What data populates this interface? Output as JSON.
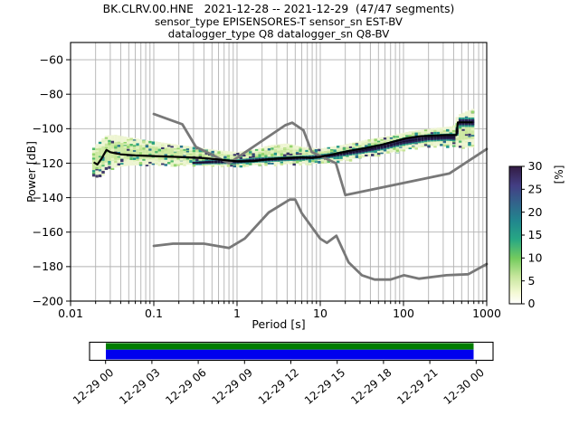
{
  "chart_data": {
    "type": "heatmap",
    "title": "BK.CLRV.00.HNE   2021-12-28 -- 2021-12-29  (47/47 segments)",
    "subtitle_sensor": "sensor_type EPISENSORES-T sensor_sn EST-BV",
    "subtitle_datalogger": "datalogger_type Q8 datalogger_sn Q8-BV",
    "x_axis": {
      "label": "Period [s]",
      "scale": "log",
      "range": [
        0.01,
        1000
      ],
      "tick_values": [
        0.01,
        0.1,
        1,
        10,
        100,
        1000
      ],
      "tick_labels": [
        "0.01",
        "0.1",
        "1",
        "10",
        "100",
        "1000"
      ]
    },
    "y_axis": {
      "label": "Power [dB]",
      "range": [
        -200,
        -50
      ],
      "tick_values": [
        -60,
        -80,
        -100,
        -120,
        -140,
        -160,
        -180,
        -200
      ]
    },
    "grid": {
      "on": true,
      "color": "#b2b2b2"
    },
    "colorbar": {
      "label": "[%]",
      "range": [
        0,
        30
      ],
      "tick_values": [
        0,
        5,
        10,
        15,
        20,
        25,
        30
      ],
      "gradient": [
        {
          "offset": 0.0,
          "color": "#ffffff"
        },
        {
          "offset": 0.08,
          "color": "#f4f9d4"
        },
        {
          "offset": 0.2,
          "color": "#c6e69c"
        },
        {
          "offset": 0.33,
          "color": "#74cb5e"
        },
        {
          "offset": 0.47,
          "color": "#27a784"
        },
        {
          "offset": 0.6,
          "color": "#21878e"
        },
        {
          "offset": 0.73,
          "color": "#32648b"
        },
        {
          "offset": 0.86,
          "color": "#433e84"
        },
        {
          "offset": 1.0,
          "color": "#331c44"
        }
      ]
    },
    "noise_models": {
      "color": "#787878",
      "nhnm": [
        [
          0.1,
          -91.5
        ],
        [
          0.22,
          -97.4
        ],
        [
          0.32,
          -110.5
        ],
        [
          0.8,
          -120.0
        ],
        [
          3.8,
          -98.0
        ],
        [
          4.6,
          -96.5
        ],
        [
          6.3,
          -101.0
        ],
        [
          7.9,
          -113.5
        ],
        [
          15.4,
          -120.0
        ],
        [
          20.0,
          -138.5
        ],
        [
          354.8,
          -126.0
        ],
        [
          1000,
          -111.8
        ]
      ],
      "nlnm": [
        [
          0.1,
          -168.0
        ],
        [
          0.17,
          -166.7
        ],
        [
          0.4,
          -166.7
        ],
        [
          0.8,
          -169.2
        ],
        [
          1.24,
          -163.7
        ],
        [
          2.4,
          -148.6
        ],
        [
          4.3,
          -141.1
        ],
        [
          5.0,
          -141.1
        ],
        [
          6.0,
          -149.0
        ],
        [
          10.0,
          -163.8
        ],
        [
          12.0,
          -166.2
        ],
        [
          15.6,
          -162.1
        ],
        [
          21.9,
          -177.5
        ],
        [
          31.6,
          -185.0
        ],
        [
          45.0,
          -187.5
        ],
        [
          70.0,
          -187.5
        ],
        [
          101.0,
          -185.0
        ],
        [
          154.0,
          -187.0
        ],
        [
          328.0,
          -185.0
        ],
        [
          600.0,
          -184.4
        ],
        [
          1000,
          -178.5
        ]
      ]
    },
    "mode_line": {
      "color": "#000000",
      "points": [
        [
          0.019,
          -119.5
        ],
        [
          0.021,
          -120.8
        ],
        [
          0.0235,
          -117.5
        ],
        [
          0.027,
          -112.3
        ],
        [
          0.03,
          -113.6
        ],
        [
          0.04,
          -114.9
        ],
        [
          0.06,
          -115.5
        ],
        [
          0.1,
          -115.9
        ],
        [
          0.2,
          -116.4
        ],
        [
          0.4,
          -117.1
        ],
        [
          0.7,
          -118.2
        ],
        [
          1.0,
          -118.9
        ],
        [
          1.6,
          -118.8
        ],
        [
          2.5,
          -117.6
        ],
        [
          4.0,
          -116.9
        ],
        [
          6.0,
          -116.6
        ],
        [
          8.0,
          -116.9
        ],
        [
          10,
          -116.3
        ],
        [
          15,
          -114.6
        ],
        [
          22,
          -112.9
        ],
        [
          35,
          -111.2
        ],
        [
          55,
          -109.3
        ],
        [
          80,
          -107.2
        ],
        [
          110,
          -105.5
        ],
        [
          160,
          -104.4
        ],
        [
          230,
          -104.0
        ],
        [
          330,
          -103.7
        ],
        [
          432,
          -103.7
        ],
        [
          450,
          -96.3
        ],
        [
          680,
          -96.3
        ]
      ]
    },
    "histogram": {
      "step_octaves": 0.125,
      "period_range": [
        0.019,
        680
      ],
      "percent_range_shown": [
        0,
        30
      ],
      "envelope": [
        [
          0.019,
          -128,
          -111
        ],
        [
          0.022,
          -129,
          -107.5
        ],
        [
          0.027,
          -124,
          -104
        ],
        [
          0.035,
          -122.5,
          -103.5
        ],
        [
          0.05,
          -121.5,
          -105
        ],
        [
          0.08,
          -121,
          -106.5
        ],
        [
          0.15,
          -120.8,
          -108.5
        ],
        [
          0.3,
          -121,
          -110.5
        ],
        [
          0.6,
          -121.5,
          -112.5
        ],
        [
          1.0,
          -121.5,
          -113.5
        ],
        [
          1.6,
          -121.2,
          -112
        ],
        [
          2.5,
          -120.8,
          -109.5
        ],
        [
          4.0,
          -120.5,
          -108.5
        ],
        [
          6.0,
          -120.2,
          -110.5
        ],
        [
          10,
          -120,
          -111.5
        ],
        [
          18,
          -118.5,
          -109.5
        ],
        [
          35,
          -116.5,
          -106.5
        ],
        [
          70,
          -114,
          -104
        ],
        [
          120,
          -111.5,
          -101.5
        ],
        [
          250,
          -110,
          -99.5
        ],
        [
          400,
          -110,
          -98.5
        ],
        [
          450,
          -111,
          -92
        ],
        [
          680,
          -111,
          -88.5
        ]
      ],
      "core": [
        [
          0.28,
          -120.8,
          -119
        ],
        [
          0.5,
          -120.6,
          -118
        ],
        [
          1.0,
          -120.5,
          -117.8
        ],
        [
          2.0,
          -119.5,
          -116.5
        ],
        [
          4.0,
          -118.8,
          -116
        ],
        [
          8.0,
          -118.2,
          -115.3
        ],
        [
          15,
          -116.8,
          -113.8
        ],
        [
          30,
          -114.8,
          -111
        ],
        [
          60,
          -112.2,
          -108.3
        ],
        [
          100,
          -109.8,
          -105.2
        ],
        [
          200,
          -107.5,
          -103.2
        ],
        [
          350,
          -107,
          -102.8
        ],
        [
          430,
          -107.5,
          -102.8
        ],
        [
          455,
          -99,
          -93.5
        ],
        [
          680,
          -99,
          -93.5
        ]
      ],
      "light_color": "#eef5d2",
      "mid_color": "#cde8a2",
      "core_outer_color": "#27988a",
      "core_inner_color": "#2b2257",
      "core_dark_color": "#181030",
      "speckle_palette": [
        "#e3f2bf",
        "#c3e493",
        "#93d46d",
        "#50b96a",
        "#26998a",
        "#28738e",
        "#3a3668"
      ]
    }
  },
  "timeline": {
    "tick_labels": [
      "12-29 00",
      "12-29 03",
      "12-29 06",
      "12-29 09",
      "12-29 12",
      "12-29 15",
      "12-29 18",
      "12-29 21",
      "12-30 00"
    ],
    "data_extent_color": "#0000ee",
    "segments_color": "#007d00",
    "background_color": "#ffffff"
  }
}
